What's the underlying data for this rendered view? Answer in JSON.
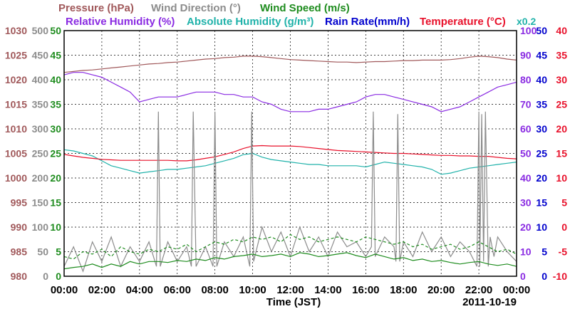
{
  "chart_data": {
    "type": "line",
    "xlabel": "Time (JST)",
    "date_label": "2011-10-19",
    "x_ticks": [
      "00:00",
      "02:00",
      "04:00",
      "06:00",
      "08:00",
      "10:00",
      "12:00",
      "14:00",
      "16:00",
      "18:00",
      "20:00",
      "22:00",
      "00:00"
    ],
    "xlim_hours": [
      0,
      24
    ],
    "grid": true,
    "legend": {
      "row1": [
        {
          "name": "Pressure (hPa)",
          "color": "#a0585a"
        },
        {
          "name": "Wind Direction (°)",
          "color": "#8c8c8c"
        },
        {
          "name": "Wind Speed (m/s)",
          "color": "#1e8c1e"
        }
      ],
      "row2": [
        {
          "name": "Relative Humidity (%)",
          "color": "#8a2be2"
        },
        {
          "name": "Absolute Humidity (g/m³)",
          "color": "#20b2aa"
        },
        {
          "name": "Rain Rate(mm/h)",
          "color": "#0000cd"
        },
        {
          "name": "Temperature (°C)",
          "color": "#e8102a"
        }
      ],
      "scale_note": {
        "text": "x0.2",
        "color": "#20b2aa"
      }
    },
    "axes": {
      "pressure": {
        "ticks": [
          "1030",
          "1025",
          "1020",
          "1015",
          "1010",
          "1005",
          "1000",
          "995",
          "990",
          "985",
          "980"
        ],
        "ylim": [
          980,
          1030
        ],
        "color": "#a0585a"
      },
      "wind_direction": {
        "ticks": [
          "500",
          "450",
          "400",
          "350",
          "300",
          "250",
          "200",
          "150",
          "100",
          "50",
          "0"
        ],
        "ylim": [
          0,
          500
        ],
        "color": "#8c8c8c"
      },
      "wind_speed": {
        "ticks": [
          "50",
          "45",
          "40",
          "35",
          "30",
          "25",
          "20",
          "15",
          "10",
          "5",
          "0"
        ],
        "ylim": [
          0,
          50
        ],
        "color": "#1e8c1e"
      },
      "humidity": {
        "ticks": [
          "100",
          "90",
          "80",
          "70",
          "60",
          "50",
          "40",
          "30",
          "20",
          "10",
          "0"
        ],
        "ylim": [
          0,
          100
        ],
        "color": "#8a2be2"
      },
      "rain_rate": {
        "ticks": [
          "50",
          "45",
          "40",
          "35",
          "30",
          "25",
          "20",
          "15",
          "10",
          "5",
          "0"
        ],
        "ylim": [
          0,
          50
        ],
        "color": "#0000cd"
      },
      "temperature": {
        "ticks": [
          "40",
          "35",
          "30",
          "25",
          "20",
          "15",
          "10",
          "5",
          "0",
          "-5",
          "-10"
        ],
        "ylim": [
          -10,
          40
        ],
        "color": "#e8102a"
      }
    },
    "series": [
      {
        "name": "Pressure (hPa)",
        "axis": "pressure",
        "color": "#a0585a",
        "x": [
          0,
          0.5,
          1,
          1.5,
          2,
          2.5,
          3,
          3.5,
          4,
          4.5,
          5,
          5.5,
          6,
          6.5,
          7,
          7.5,
          8,
          8.5,
          9,
          9.5,
          10,
          10.5,
          11,
          11.5,
          12,
          12.5,
          13,
          13.5,
          14,
          14.5,
          15,
          15.5,
          16,
          16.5,
          17,
          17.5,
          18,
          18.5,
          19,
          19.5,
          20,
          20.5,
          21,
          21.5,
          22,
          22.5,
          23,
          23.5,
          24
        ],
        "y": [
          1021.5,
          1021.7,
          1021.9,
          1022.0,
          1022.2,
          1022.4,
          1022.6,
          1022.8,
          1023.0,
          1023.2,
          1023.3,
          1023.5,
          1023.6,
          1023.8,
          1024.0,
          1024.2,
          1024.3,
          1024.5,
          1024.6,
          1024.8,
          1024.8,
          1024.7,
          1024.5,
          1024.3,
          1024.1,
          1024.0,
          1023.9,
          1023.8,
          1023.7,
          1023.6,
          1023.6,
          1023.5,
          1023.6,
          1023.7,
          1023.7,
          1023.8,
          1023.9,
          1023.9,
          1024.0,
          1024.0,
          1024.0,
          1024.1,
          1024.3,
          1024.6,
          1024.8,
          1024.7,
          1024.5,
          1024.2,
          1024.0
        ]
      },
      {
        "name": "Relative Humidity (%)",
        "axis": "humidity",
        "color": "#8a2be2",
        "x": [
          0,
          0.5,
          1,
          1.5,
          2,
          2.5,
          3,
          3.5,
          4,
          4.5,
          5,
          5.5,
          6,
          6.5,
          7,
          7.5,
          8,
          8.5,
          9,
          9.5,
          10,
          10.5,
          11,
          11.5,
          12,
          12.5,
          13,
          13.5,
          14,
          14.5,
          15,
          15.5,
          16,
          16.5,
          17,
          17.5,
          18,
          18.5,
          19,
          19.5,
          20,
          20.5,
          21,
          21.5,
          22,
          22.5,
          23,
          23.5,
          24
        ],
        "y": [
          82,
          83,
          83,
          82,
          81,
          79,
          77,
          75,
          71,
          72,
          73,
          73,
          73,
          74,
          75,
          75,
          75,
          74,
          74,
          73,
          73,
          71,
          70,
          68,
          67,
          67,
          67,
          68,
          68,
          69,
          70,
          71,
          73,
          74,
          74,
          73,
          72,
          71,
          70,
          69,
          67,
          68,
          69,
          71,
          73,
          75,
          77,
          78,
          79
        ]
      },
      {
        "name": "Absolute Humidity (g/m³)",
        "axis": "humidity",
        "color": "#20b2aa",
        "x": [
          0,
          0.5,
          1,
          1.5,
          2,
          2.5,
          3,
          3.5,
          4,
          4.5,
          5,
          5.5,
          6,
          6.5,
          7,
          7.5,
          8,
          8.5,
          9,
          9.5,
          10,
          10.5,
          11,
          11.5,
          12,
          12.5,
          13,
          13.5,
          14,
          14.5,
          15,
          15.5,
          16,
          16.5,
          17,
          17.5,
          18,
          18.5,
          19,
          19.5,
          20,
          20.5,
          21,
          21.5,
          22,
          22.5,
          23,
          23.5,
          24
        ],
        "y": [
          51.5,
          51,
          50,
          49,
          47,
          45,
          44,
          43,
          42,
          42.5,
          43,
          43.5,
          43.5,
          44,
          44.5,
          45,
          46,
          47,
          48,
          49.5,
          50,
          48.5,
          47.5,
          47,
          46.5,
          46,
          45.5,
          45.5,
          45,
          45,
          45,
          45,
          44.5,
          45.5,
          46.5,
          46,
          45.5,
          45,
          44.5,
          43.5,
          41.5,
          42,
          43,
          44,
          44.5,
          45,
          45.5,
          46,
          46.5
        ]
      },
      {
        "name": "Temperature (°C)",
        "axis": "temperature",
        "color": "#e8102a",
        "x": [
          0,
          0.5,
          1,
          1.5,
          2,
          2.5,
          3,
          3.5,
          4,
          4.5,
          5,
          5.5,
          6,
          6.5,
          7,
          7.5,
          8,
          8.5,
          9,
          9.5,
          10,
          10.5,
          11,
          11.5,
          12,
          12.5,
          13,
          13.5,
          14,
          14.5,
          15,
          15.5,
          16,
          16.5,
          17,
          17.5,
          18,
          18.5,
          19,
          19.5,
          20,
          20.5,
          21,
          21.5,
          22,
          22.5,
          23,
          23.5,
          24
        ],
        "y": [
          14.8,
          14.5,
          14.2,
          14.0,
          13.8,
          13.7,
          13.6,
          13.6,
          13.6,
          13.6,
          13.6,
          13.6,
          13.5,
          13.5,
          13.7,
          14.0,
          14.3,
          14.8,
          15.3,
          16.0,
          16.5,
          16.6,
          16.5,
          16.5,
          16.5,
          16.4,
          16.2,
          16.0,
          15.8,
          15.6,
          15.5,
          15.4,
          15.3,
          15.2,
          15.1,
          15.0,
          15.0,
          14.9,
          14.8,
          14.7,
          14.6,
          14.6,
          14.5,
          14.5,
          14.4,
          14.4,
          14.2,
          14.0,
          13.9
        ]
      },
      {
        "name": "Wind Direction (°)",
        "axis": "wind_direction",
        "color": "#8c8c8c",
        "x": [
          0,
          0.5,
          1,
          1.5,
          2,
          2.5,
          3,
          3.5,
          4,
          4.5,
          4.9,
          5.0,
          5.1,
          5.5,
          6,
          6.5,
          6.75,
          6.85,
          7.0,
          7.5,
          7.9,
          8.0,
          8.1,
          8.5,
          9,
          9.5,
          9.85,
          9.95,
          10.05,
          10.5,
          11,
          11.5,
          12,
          12.5,
          13,
          13.5,
          14,
          14.5,
          15,
          15.5,
          16,
          16.3,
          16.4,
          16.5,
          17,
          17.5,
          17.6,
          17.7,
          17.8,
          18,
          18.5,
          19,
          19.5,
          20,
          20.5,
          21,
          21.5,
          21.9,
          22.0,
          22.05,
          22.15,
          22.25,
          22.35,
          22.5,
          22.6,
          22.7,
          22.8,
          23,
          23.5,
          24
        ],
        "y": [
          20,
          60,
          10,
          70,
          30,
          80,
          20,
          60,
          30,
          70,
          20,
          335,
          20,
          70,
          30,
          60,
          20,
          335,
          20,
          60,
          20,
          335,
          20,
          70,
          40,
          80,
          20,
          335,
          30,
          100,
          50,
          90,
          40,
          100,
          50,
          80,
          40,
          90,
          60,
          70,
          40,
          60,
          335,
          40,
          80,
          60,
          30,
          330,
          30,
          70,
          40,
          90,
          50,
          80,
          40,
          70,
          50,
          20,
          335,
          20,
          330,
          30,
          335,
          20,
          80,
          60,
          40,
          80,
          50,
          30
        ]
      },
      {
        "name": "Wind Speed (m/s)",
        "axis": "wind_speed",
        "color": "#1e8c1e",
        "style": "solid",
        "x": [
          0,
          0.5,
          1,
          1.5,
          2,
          2.5,
          3,
          3.5,
          4,
          4.5,
          5,
          5.5,
          6,
          6.5,
          7,
          7.5,
          8,
          8.5,
          9,
          9.5,
          10,
          10.5,
          11,
          11.5,
          12,
          12.5,
          13,
          13.5,
          14,
          14.5,
          15,
          15.5,
          16,
          16.5,
          17,
          17.5,
          18,
          18.5,
          19,
          19.5,
          20,
          20.5,
          21,
          21.5,
          22,
          22.5,
          23,
          23.5,
          24
        ],
        "y": [
          1.5,
          1.8,
          2,
          2.5,
          1.8,
          2.5,
          2,
          3,
          2.5,
          3,
          3,
          2.8,
          3.2,
          3,
          3.5,
          3.2,
          3.8,
          3.5,
          4,
          4.2,
          4.5,
          4,
          4.2,
          4.5,
          4,
          4.8,
          4.5,
          4,
          4.2,
          4.5,
          4.8,
          4.2,
          3.8,
          4.5,
          4,
          3.5,
          3.8,
          3.2,
          3.5,
          3,
          3.2,
          2.8,
          2.5,
          2.8,
          3,
          2.5,
          2.2,
          2.5,
          2
        ]
      },
      {
        "name": "Wind Speed gust (m/s)",
        "axis": "wind_speed",
        "color": "#1e8c1e",
        "style": "dashed",
        "x": [
          0,
          0.5,
          1,
          1.5,
          2,
          2.5,
          3,
          3.5,
          4,
          4.5,
          5,
          5.5,
          6,
          6.5,
          7,
          7.5,
          8,
          8.5,
          9,
          9.5,
          10,
          10.5,
          11,
          11.5,
          12,
          12.5,
          13,
          13.5,
          14,
          14.5,
          15,
          15.5,
          16,
          16.5,
          17,
          17.5,
          18,
          18.5,
          19,
          19.5,
          20,
          20.5,
          21,
          21.5,
          22,
          22.5,
          23,
          23.5,
          24
        ],
        "y": [
          4,
          3.5,
          5,
          4.5,
          5.5,
          4,
          6,
          5,
          4.5,
          5.5,
          5,
          6,
          5.5,
          6.5,
          5,
          6,
          7,
          6.5,
          7.5,
          7,
          8,
          7.5,
          8,
          7,
          8.5,
          7.5,
          8,
          7,
          7.5,
          8,
          7.5,
          7,
          8,
          7.5,
          7,
          6.5,
          7,
          6,
          6.5,
          5.5,
          6,
          6.5,
          5.5,
          6,
          7,
          6,
          5,
          5.5,
          4.5
        ]
      }
    ]
  }
}
